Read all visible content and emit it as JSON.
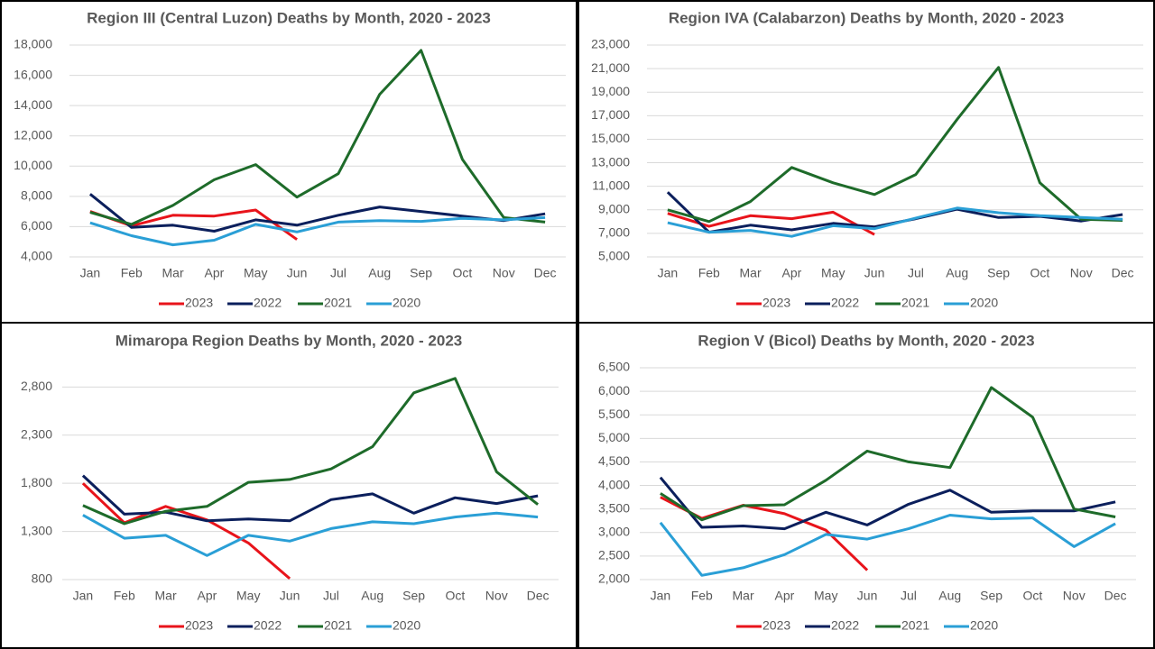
{
  "chart_data": [
    {
      "type": "line",
      "title": "Region III (Central Luzon) Deaths by Month, 2020 - 2023",
      "categories": [
        "Jan",
        "Feb",
        "Mar",
        "Apr",
        "May",
        "Jun",
        "Jul",
        "Aug",
        "Sep",
        "Oct",
        "Nov",
        "Dec"
      ],
      "series": [
        {
          "name": "2023",
          "color": "#e8141b",
          "values": [
            7000,
            6050,
            6750,
            6700,
            7100,
            5150,
            null,
            null,
            null,
            null,
            null,
            null
          ]
        },
        {
          "name": "2022",
          "color": "#0b1f5c",
          "values": [
            8150,
            5950,
            6100,
            5700,
            6450,
            6100,
            6750,
            7300,
            7000,
            6700,
            6400,
            6850
          ]
        },
        {
          "name": "2021",
          "color": "#1e6b2a",
          "values": [
            6950,
            6150,
            7400,
            9100,
            10100,
            7950,
            9500,
            14750,
            17650,
            10450,
            6600,
            6300
          ]
        },
        {
          "name": "2020",
          "color": "#2a9fd6",
          "values": [
            6250,
            5400,
            4800,
            5100,
            6150,
            5650,
            6300,
            6400,
            6350,
            6550,
            6450,
            6600
          ]
        }
      ],
      "ylim": [
        4000,
        18000
      ],
      "yticks": [
        {
          "value": 4000,
          "label": "4,000"
        },
        {
          "value": 6000,
          "label": "6,000"
        },
        {
          "value": 8000,
          "label": "8,000"
        },
        {
          "value": 10000,
          "label": "10,000"
        },
        {
          "value": 12000,
          "label": "12,000"
        },
        {
          "value": 14000,
          "label": "14,000"
        },
        {
          "value": 16000,
          "label": "16,000"
        },
        {
          "value": 18000,
          "label": "18,000"
        }
      ],
      "grid": true,
      "legend": "bottom"
    },
    {
      "type": "line",
      "title": "Region IVA (Calabarzon) Deaths by Month, 2020 - 2023",
      "categories": [
        "Jan",
        "Feb",
        "Mar",
        "Apr",
        "May",
        "Jun",
        "Jul",
        "Aug",
        "Sep",
        "Oct",
        "Nov",
        "Dec"
      ],
      "series": [
        {
          "name": "2023",
          "color": "#e8141b",
          "values": [
            8700,
            7600,
            8500,
            8250,
            8800,
            6900,
            null,
            null,
            null,
            null,
            null,
            null
          ]
        },
        {
          "name": "2022",
          "color": "#0b1f5c",
          "values": [
            10500,
            7100,
            7700,
            7300,
            7850,
            7550,
            8250,
            9050,
            8350,
            8450,
            8050,
            8600
          ]
        },
        {
          "name": "2021",
          "color": "#1e6b2a",
          "values": [
            9000,
            8000,
            9700,
            12600,
            11300,
            10300,
            12000,
            16700,
            21100,
            11300,
            8200,
            8100
          ]
        },
        {
          "name": "2020",
          "color": "#2a9fd6",
          "values": [
            7900,
            7100,
            7250,
            6750,
            7650,
            7400,
            8300,
            9150,
            8750,
            8500,
            8350,
            8200
          ]
        }
      ],
      "ylim": [
        5000,
        23000
      ],
      "yticks": [
        {
          "value": 5000,
          "label": "5,000"
        },
        {
          "value": 7000,
          "label": "7,000"
        },
        {
          "value": 9000,
          "label": "9,000"
        },
        {
          "value": 11000,
          "label": "11,000"
        },
        {
          "value": 13000,
          "label": "13,000"
        },
        {
          "value": 15000,
          "label": "15,000"
        },
        {
          "value": 17000,
          "label": "17,000"
        },
        {
          "value": 19000,
          "label": "19,000"
        },
        {
          "value": 21000,
          "label": "21,000"
        },
        {
          "value": 23000,
          "label": "23,000"
        }
      ],
      "grid": true,
      "legend": "bottom"
    },
    {
      "type": "line",
      "title": "Mimaropa Region  Deaths by Month, 2020 - 2023",
      "categories": [
        "Jan",
        "Feb",
        "Mar",
        "Apr",
        "May",
        "Jun",
        "Jul",
        "Aug",
        "Sep",
        "Oct",
        "Nov",
        "Dec"
      ],
      "series": [
        {
          "name": "2023",
          "color": "#e8141b",
          "values": [
            1800,
            1390,
            1560,
            1420,
            1180,
            810,
            null,
            null,
            null,
            null,
            null,
            null
          ]
        },
        {
          "name": "2022",
          "color": "#0b1f5c",
          "values": [
            1880,
            1480,
            1500,
            1410,
            1430,
            1410,
            1630,
            1690,
            1490,
            1650,
            1590,
            1670
          ]
        },
        {
          "name": "2021",
          "color": "#1e6b2a",
          "values": [
            1570,
            1380,
            1510,
            1560,
            1810,
            1840,
            1950,
            2180,
            2740,
            2890,
            1920,
            1580
          ]
        },
        {
          "name": "2020",
          "color": "#2a9fd6",
          "values": [
            1470,
            1230,
            1260,
            1050,
            1260,
            1200,
            1330,
            1400,
            1380,
            1450,
            1490,
            1450
          ]
        }
      ],
      "ylim": [
        800,
        3000
      ],
      "yticks": [
        800,
        {
          "value": 1300,
          "label": "1,300"
        },
        {
          "value": 1800,
          "label": "1,800"
        },
        {
          "value": 2300,
          "label": "2,300"
        },
        {
          "value": 2800,
          "label": "2,800"
        }
      ],
      "grid": true,
      "legend": "bottom"
    },
    {
      "type": "line",
      "title": "Region V (Bicol) Deaths by Month, 2020 - 2023",
      "categories": [
        "Jan",
        "Feb",
        "Mar",
        "Apr",
        "May",
        "Jun",
        "Jul",
        "Aug",
        "Sep",
        "Oct",
        "Nov",
        "Dec"
      ],
      "series": [
        {
          "name": "2023",
          "color": "#e8141b",
          "values": [
            3750,
            3300,
            3580,
            3400,
            3050,
            2200,
            null,
            null,
            null,
            null,
            null,
            null
          ]
        },
        {
          "name": "2022",
          "color": "#0b1f5c",
          "values": [
            4170,
            3110,
            3140,
            3080,
            3430,
            3160,
            3600,
            3900,
            3430,
            3460,
            3460,
            3650
          ]
        },
        {
          "name": "2021",
          "color": "#1e6b2a",
          "values": [
            3830,
            3270,
            3570,
            3590,
            4110,
            4730,
            4500,
            4380,
            6080,
            5450,
            3500,
            3330
          ]
        },
        {
          "name": "2020",
          "color": "#2a9fd6",
          "values": [
            3210,
            2090,
            2250,
            2530,
            2960,
            2860,
            3080,
            3370,
            3290,
            3310,
            2700,
            3190
          ]
        }
      ],
      "ylim": [
        2000,
        6500
      ],
      "yticks": [
        {
          "value": 2000,
          "label": "2,000"
        },
        {
          "value": 2500,
          "label": "2,500"
        },
        {
          "value": 3000,
          "label": "3,000"
        },
        {
          "value": 3500,
          "label": "3,500"
        },
        {
          "value": 4000,
          "label": "4,000"
        },
        {
          "value": 4500,
          "label": "4,500"
        },
        {
          "value": 5000,
          "label": "5,000"
        },
        {
          "value": 5500,
          "label": "5,500"
        },
        {
          "value": 6000,
          "label": "6,000"
        },
        {
          "value": 6500,
          "label": "6,500"
        }
      ],
      "grid": true,
      "legend": "bottom"
    }
  ]
}
